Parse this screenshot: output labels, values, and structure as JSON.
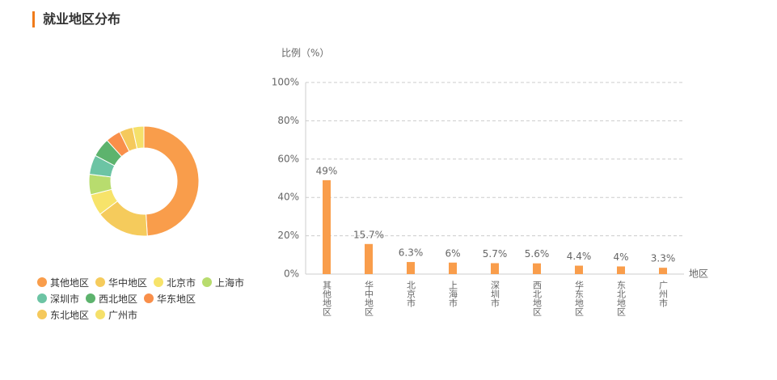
{
  "header": {
    "title": "就业地区分布"
  },
  "chart_data": [
    {
      "type": "donut",
      "categories": [
        "其他地区",
        "华中地区",
        "北京市",
        "上海市",
        "深圳市",
        "西北地区",
        "华东地区",
        "东北地区",
        "广州市"
      ],
      "values": [
        49,
        15.7,
        6.3,
        6,
        5.7,
        5.6,
        4.4,
        4,
        3.3
      ],
      "colors": [
        "#f99d4b",
        "#f5cb5c",
        "#f7e36a",
        "#b8dc6e",
        "#6cc4a4",
        "#5db36d",
        "#f98f4a",
        "#f5c95c",
        "#f5e06a"
      ],
      "legend": "bottom-left"
    },
    {
      "type": "bar",
      "y_label": "比例（%）",
      "x_label": "地区",
      "categories": [
        "其他地区",
        "华中地区",
        "北京市",
        "上海市",
        "深圳市",
        "西北地区",
        "华东地区",
        "东北地区",
        "广州市"
      ],
      "values": [
        49,
        15.7,
        6.3,
        6,
        5.7,
        5.6,
        4.4,
        4,
        3.3
      ],
      "value_labels": [
        "49%",
        "15.7%",
        "6.3%",
        "6%",
        "5.7%",
        "5.6%",
        "4.4%",
        "4%",
        "3.3%"
      ],
      "color": "#f99d4b",
      "ylim": [
        0,
        100
      ],
      "yticks": [
        {
          "value": 0,
          "label": "0%"
        },
        {
          "value": 20,
          "label": "20%"
        },
        {
          "value": 40,
          "label": "40%"
        },
        {
          "value": 60,
          "label": "60%"
        },
        {
          "value": 80,
          "label": "80%"
        },
        {
          "value": 100,
          "label": "100%"
        }
      ],
      "grid": true
    }
  ]
}
